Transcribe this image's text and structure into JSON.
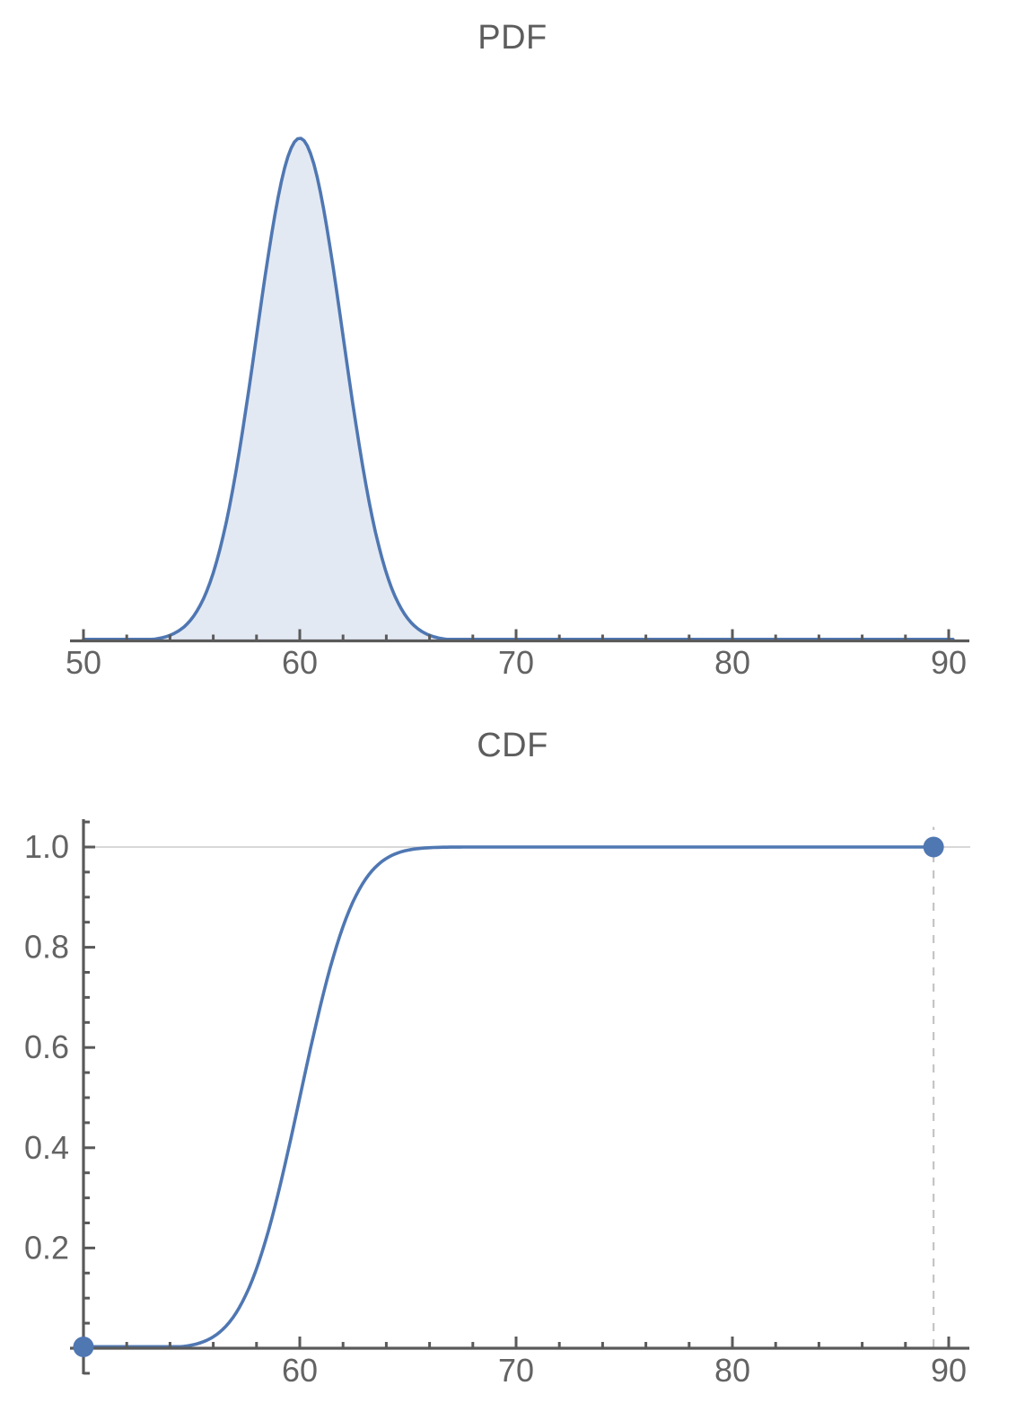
{
  "styles": {
    "background": "#ffffff",
    "axis_color": "#5a5a5a",
    "tick_label_color": "#636363",
    "title_color": "#5d5d5d",
    "curve_color": "#4f77b2",
    "fill_color": "rgba(79,119,178,0.16)",
    "gridline_color": "#cccccc",
    "dashed_line_color": "#c4c4c4",
    "dot_color": "#4f77b2"
  },
  "chart_data": [
    {
      "type": "area",
      "name": "pdf",
      "title": "PDF",
      "curve": "pdf",
      "distribution": {
        "family": "normal",
        "mean": 60,
        "sd": 2
      },
      "x_domain": [
        50,
        90.3
      ],
      "x_axis": {
        "major_ticks": [
          50,
          60,
          70,
          80,
          90
        ],
        "minor_tick_step": 2,
        "minor_range": [
          52,
          88
        ],
        "range": [
          49.4,
          91
        ]
      },
      "y_axis": {
        "shown": false,
        "max": 0.205
      },
      "peak": {
        "x": 60,
        "y": 0.1995
      },
      "filled": true,
      "grid": false,
      "legend": null
    },
    {
      "type": "line",
      "name": "cdf",
      "title": "CDF",
      "curve": "cdf",
      "distribution": {
        "family": "normal",
        "mean": 60,
        "sd": 2
      },
      "x_domain": [
        50,
        89.3
      ],
      "x_axis": {
        "major_ticks": [
          60,
          70,
          80,
          90
        ],
        "minor_tick_step": 2,
        "minor_range": [
          52,
          88
        ],
        "range": [
          49.4,
          91
        ]
      },
      "y_axis": {
        "shown": true,
        "major_ticks": [
          0.2,
          0.4,
          0.6,
          0.8,
          1.0
        ],
        "minor_tick_step": 0.05,
        "range": [
          -0.05,
          1.05
        ]
      },
      "gridline_y": 1.0,
      "endpoint_dots": [
        {
          "x": 50,
          "y": 0
        },
        {
          "x": 89.3,
          "y": 1.0
        }
      ],
      "dashed_vline": {
        "x": 89.3,
        "from_y": 0,
        "to_y": 1.04
      },
      "filled": false,
      "grid": true,
      "legend": null
    }
  ]
}
